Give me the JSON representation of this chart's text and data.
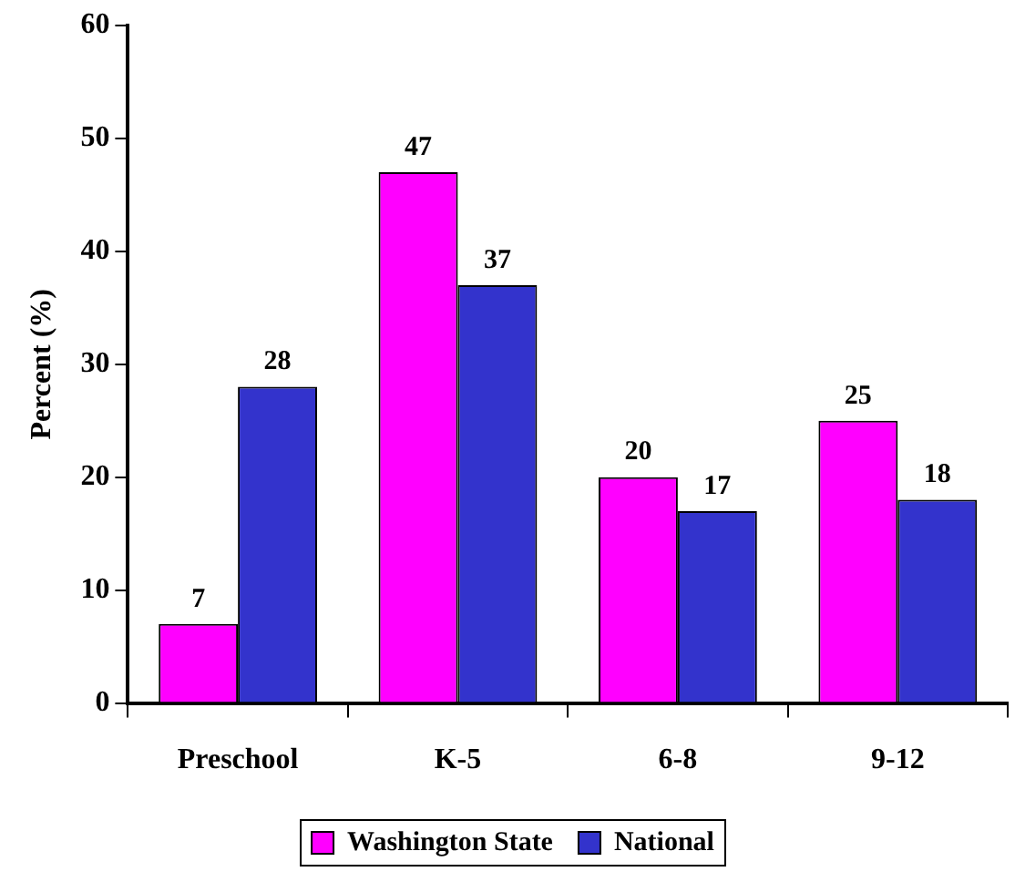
{
  "chart_data": {
    "type": "bar",
    "ylabel": "Percent (%)",
    "categories": [
      "Preschool",
      "K-5",
      "6-8",
      "9-12"
    ],
    "series": [
      {
        "name": "Washington State",
        "color": "#ff00ff",
        "values": [
          7,
          47,
          20,
          25
        ]
      },
      {
        "name": "National",
        "color": "#3333cc",
        "values": [
          28,
          37,
          17,
          18
        ]
      }
    ],
    "ylim": [
      0,
      60
    ],
    "yticks": [
      0,
      10,
      20,
      30,
      40,
      50,
      60
    ],
    "legend": "bottom",
    "data_labels": true
  }
}
